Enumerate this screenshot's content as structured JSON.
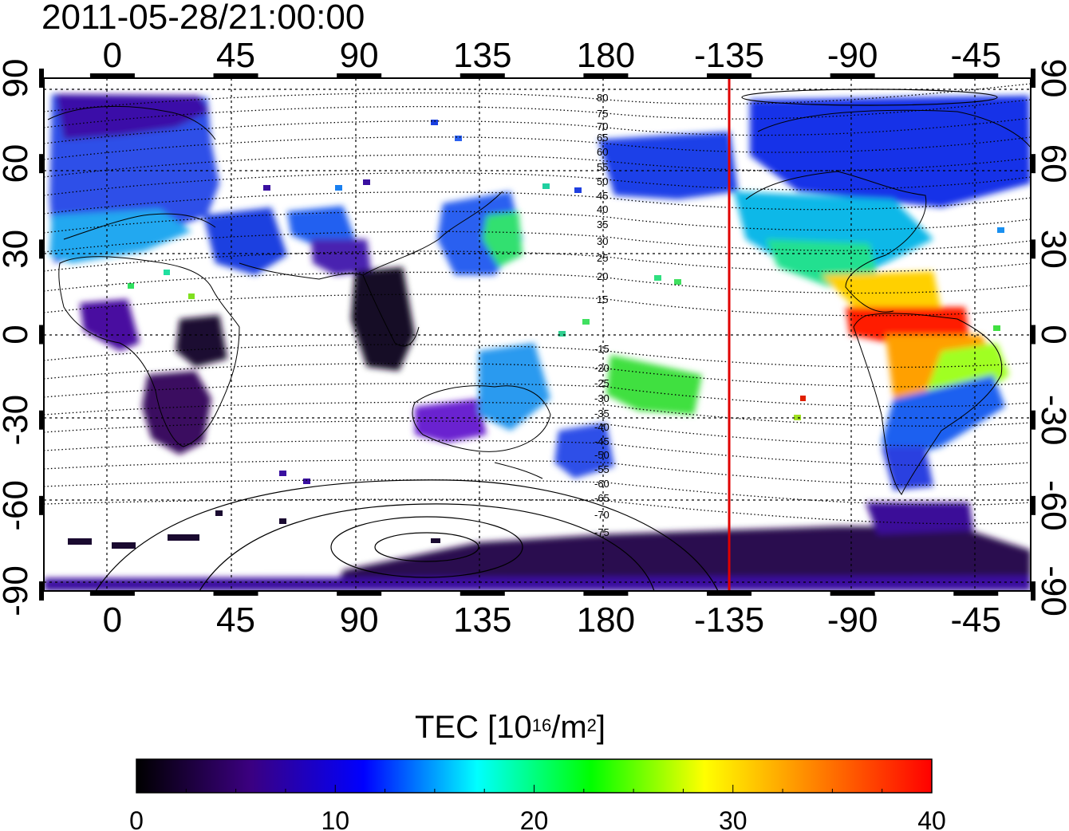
{
  "title": "2011-05-28/21:00:00",
  "map": {
    "lon_ticks": [
      "0",
      "45",
      "90",
      "135",
      "180",
      "-135",
      "-90",
      "-45"
    ],
    "lon_tick_values": [
      0,
      45,
      90,
      135,
      180,
      225,
      270,
      315
    ],
    "lon_range": [
      -25,
      335
    ],
    "lat_ticks": [
      "90",
      "60",
      "30",
      "0",
      "-30",
      "-60",
      "-90"
    ],
    "lat_tick_values": [
      90,
      60,
      30,
      0,
      -30,
      -60,
      -90
    ],
    "lat_range": [
      -90,
      90
    ],
    "contour_labels_upper": [
      "80",
      "75",
      "70",
      "65",
      "60",
      "55",
      "50",
      "45",
      "40",
      "35",
      "30",
      "25",
      "20",
      "15"
    ],
    "contour_labels_lower": [
      "-15",
      "-20",
      "-25",
      "-30",
      "-35",
      "-40",
      "-45",
      "-50",
      "-55",
      "-60",
      "-65",
      "-70",
      "-75"
    ],
    "terminator_longitude": -135,
    "terminator_color": "#e00000",
    "grid": true
  },
  "colorbar": {
    "label_main": "TEC  [10",
    "label_sup": "16",
    "label_unit": "/m",
    "label_sup2": "2",
    "label_end": "]",
    "min": 0,
    "max": 40,
    "ticks": [
      "0",
      "10",
      "20",
      "30",
      "40"
    ],
    "stops": [
      "#000000",
      "#3b0080",
      "#0000ff",
      "#00ffff",
      "#00ff00",
      "#ffff00",
      "#ff7f00",
      "#ff0000"
    ]
  }
}
